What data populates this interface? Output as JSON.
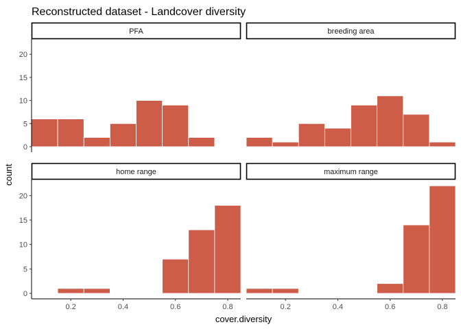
{
  "chart_data": {
    "type": "bar",
    "title": "Reconstructed dataset - Landcover diversity",
    "xlabel": "cover.diversity",
    "ylabel": "count",
    "xlim": [
      0.05,
      0.85
    ],
    "x_ticks": [
      "0.2",
      "0.4",
      "0.6",
      "0.8"
    ],
    "x_tick_values": [
      0.2,
      0.4,
      0.6,
      0.8
    ],
    "bin_width": 0.1,
    "bar_color": "#cd5c48",
    "grid": false,
    "facets": [
      {
        "label": "PFA",
        "ylim": [
          0,
          23
        ],
        "y_ticks": [
          "0",
          "5",
          "10",
          "15",
          "20"
        ],
        "y_tick_values": [
          0,
          5,
          10,
          15,
          20
        ],
        "bin_centers": [
          0.1,
          0.2,
          0.3,
          0.4,
          0.5,
          0.6,
          0.7
        ],
        "counts": [
          6,
          6,
          2,
          5,
          10,
          9,
          2
        ]
      },
      {
        "label": "breeding area",
        "ylim": [
          0,
          23
        ],
        "y_ticks": [],
        "y_tick_values": [],
        "bin_centers": [
          0.1,
          0.2,
          0.3,
          0.4,
          0.5,
          0.6,
          0.7,
          0.8
        ],
        "counts": [
          2,
          1,
          5,
          4,
          9,
          11,
          7,
          1
        ]
      },
      {
        "label": "home range",
        "ylim": [
          0,
          23
        ],
        "y_ticks": [
          "0",
          "5",
          "10",
          "15",
          "20"
        ],
        "y_tick_values": [
          0,
          5,
          10,
          15,
          20
        ],
        "bin_centers": [
          0.2,
          0.3,
          0.6,
          0.7,
          0.8
        ],
        "counts": [
          1,
          1,
          7,
          13,
          18
        ]
      },
      {
        "label": "maximum range",
        "ylim": [
          0,
          23
        ],
        "y_ticks": [],
        "y_tick_values": [],
        "bin_centers": [
          0.1,
          0.2,
          0.6,
          0.7,
          0.8
        ],
        "counts": [
          1,
          1,
          2,
          14,
          22
        ]
      }
    ]
  }
}
